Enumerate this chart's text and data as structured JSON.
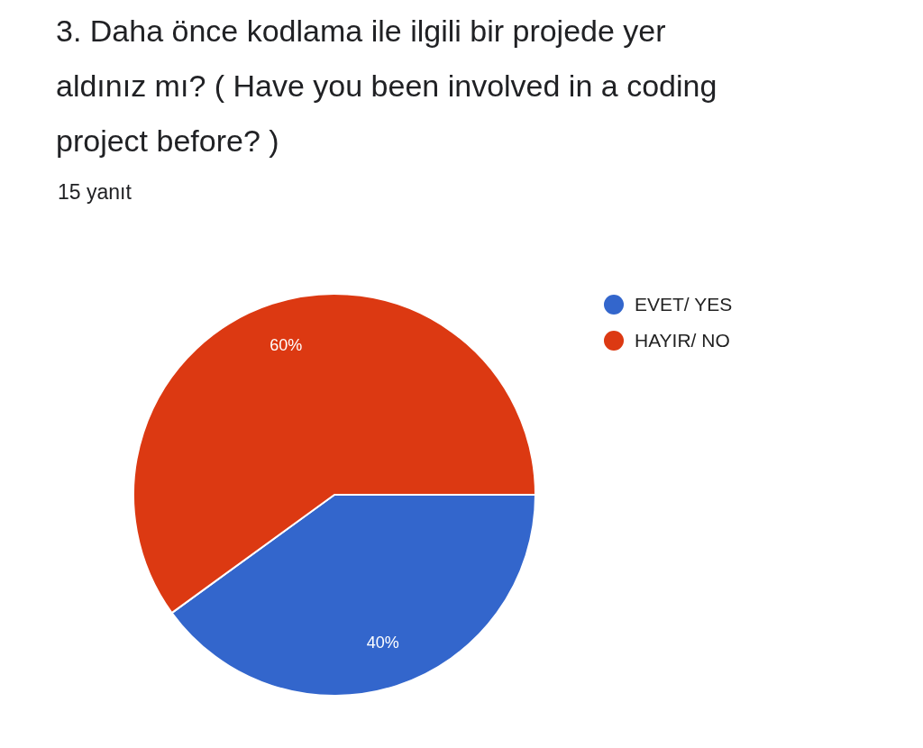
{
  "chart_data": {
    "type": "pie",
    "title": "3. Daha önce kodlama ile ilgili bir projede yer aldınız mı? ( Have you been involved in a coding project before? )",
    "subtitle": "15 yanıt",
    "categories": [
      "EVET/ YES",
      "HAYIR/ NO"
    ],
    "values": [
      40,
      60
    ],
    "colors": [
      "#3366cc",
      "#dc3912"
    ],
    "value_labels": [
      "40%",
      "60%"
    ],
    "legend": "top right"
  }
}
